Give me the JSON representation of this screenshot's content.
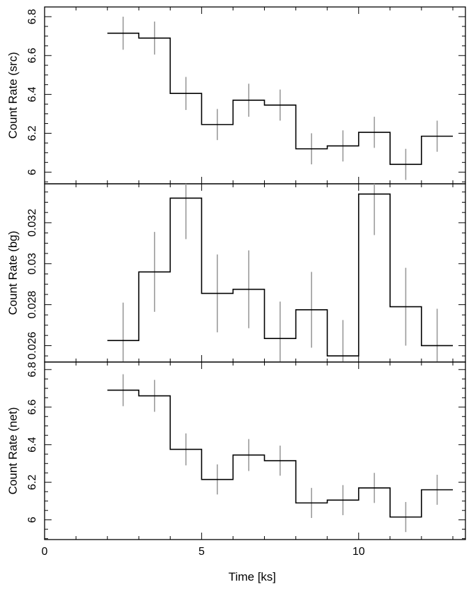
{
  "chart_data": [
    {
      "type": "line",
      "ylabel": "Count Rate (src)",
      "ylim": [
        5.94,
        6.85
      ],
      "yticks": [
        6,
        6.2,
        6.4,
        6.6,
        6.8
      ],
      "ytick_labels": [
        "6",
        "6.2",
        "6.4",
        "6.6",
        "6.8"
      ],
      "xlim": [
        0,
        13.4
      ],
      "bins": [
        [
          2,
          3
        ],
        [
          3,
          4
        ],
        [
          4,
          5
        ],
        [
          5,
          6
        ],
        [
          6,
          7
        ],
        [
          7,
          8
        ],
        [
          8,
          9
        ],
        [
          9,
          10
        ],
        [
          10,
          11
        ],
        [
          11,
          12
        ],
        [
          12,
          13
        ]
      ],
      "values": [
        6.715,
        6.69,
        6.405,
        6.245,
        6.37,
        6.345,
        6.12,
        6.135,
        6.205,
        6.04,
        6.185
      ],
      "errors": [
        0.085,
        0.085,
        0.085,
        0.08,
        0.085,
        0.08,
        0.08,
        0.08,
        0.08,
        0.08,
        0.08
      ]
    },
    {
      "type": "line",
      "ylabel": "Count Rate (bg)",
      "ylim": [
        0.0252,
        0.0339
      ],
      "yticks": [
        0.026,
        0.028,
        0.03,
        0.032
      ],
      "ytick_labels": [
        "0.026",
        "0.028",
        "0.03",
        "0.032"
      ],
      "xlim": [
        0,
        13.4
      ],
      "bins": [
        [
          2,
          3
        ],
        [
          3,
          4
        ],
        [
          4,
          5
        ],
        [
          5,
          6
        ],
        [
          6,
          7
        ],
        [
          7,
          8
        ],
        [
          8,
          9
        ],
        [
          9,
          10
        ],
        [
          10,
          11
        ],
        [
          11,
          12
        ],
        [
          12,
          13
        ]
      ],
      "values": [
        0.02625,
        0.0296,
        0.0332,
        0.02855,
        0.02875,
        0.02635,
        0.02775,
        0.0255,
        0.0334,
        0.0279,
        0.026
      ],
      "errors": [
        0.00185,
        0.00195,
        0.002,
        0.0019,
        0.0019,
        0.0018,
        0.00185,
        0.00175,
        0.002,
        0.0019,
        0.0018
      ]
    },
    {
      "type": "line",
      "ylabel": "Count Rate (net)",
      "xlabel": "Time [ks]",
      "ylim": [
        5.895,
        6.84
      ],
      "yticks": [
        6,
        6.2,
        6.4,
        6.6,
        6.8
      ],
      "ytick_labels": [
        "6",
        "6.2",
        "6.4",
        "6.6",
        "6.8"
      ],
      "xticks": [
        0,
        5,
        10
      ],
      "xtick_labels": [
        "0",
        "5",
        "10"
      ],
      "xlim": [
        0,
        13.4
      ],
      "bins": [
        [
          2,
          3
        ],
        [
          3,
          4
        ],
        [
          4,
          5
        ],
        [
          5,
          6
        ],
        [
          6,
          7
        ],
        [
          7,
          8
        ],
        [
          8,
          9
        ],
        [
          9,
          10
        ],
        [
          10,
          11
        ],
        [
          11,
          12
        ],
        [
          12,
          13
        ]
      ],
      "values": [
        6.69,
        6.66,
        6.375,
        6.215,
        6.345,
        6.315,
        6.09,
        6.105,
        6.17,
        6.015,
        6.16
      ],
      "errors": [
        0.085,
        0.085,
        0.085,
        0.08,
        0.085,
        0.08,
        0.08,
        0.08,
        0.08,
        0.08,
        0.08
      ]
    }
  ],
  "colors": {
    "line": "#000000",
    "error_bar": "#9a9a9a"
  }
}
